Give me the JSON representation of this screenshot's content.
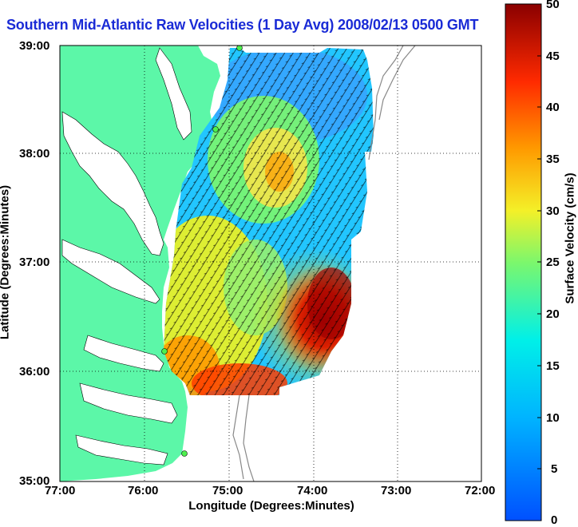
{
  "title": "Southern Mid-Atlantic Raw Velocities (1 Day Avg) 2008/02/13 0500 GMT",
  "axes": {
    "xlabel": "Longitude (Degrees:Minutes)",
    "ylabel": "Latitude (Degrees:Minutes)",
    "xticks": [
      "77:00",
      "76:00",
      "75:00",
      "74:00",
      "73:00",
      "72:00"
    ],
    "yticks": [
      "39:00",
      "38:00",
      "37:00",
      "36:00",
      "35:00"
    ]
  },
  "colorbar": {
    "label": "Surface Velocity (cm/s)",
    "ticks": [
      "50",
      "45",
      "40",
      "35",
      "30",
      "25",
      "20",
      "15",
      "10",
      "5",
      "0"
    ],
    "range": [
      0,
      50
    ]
  },
  "colors": {
    "land": "#5cf7a8",
    "water": "#ffffff",
    "title": "#1a2bd6"
  }
}
